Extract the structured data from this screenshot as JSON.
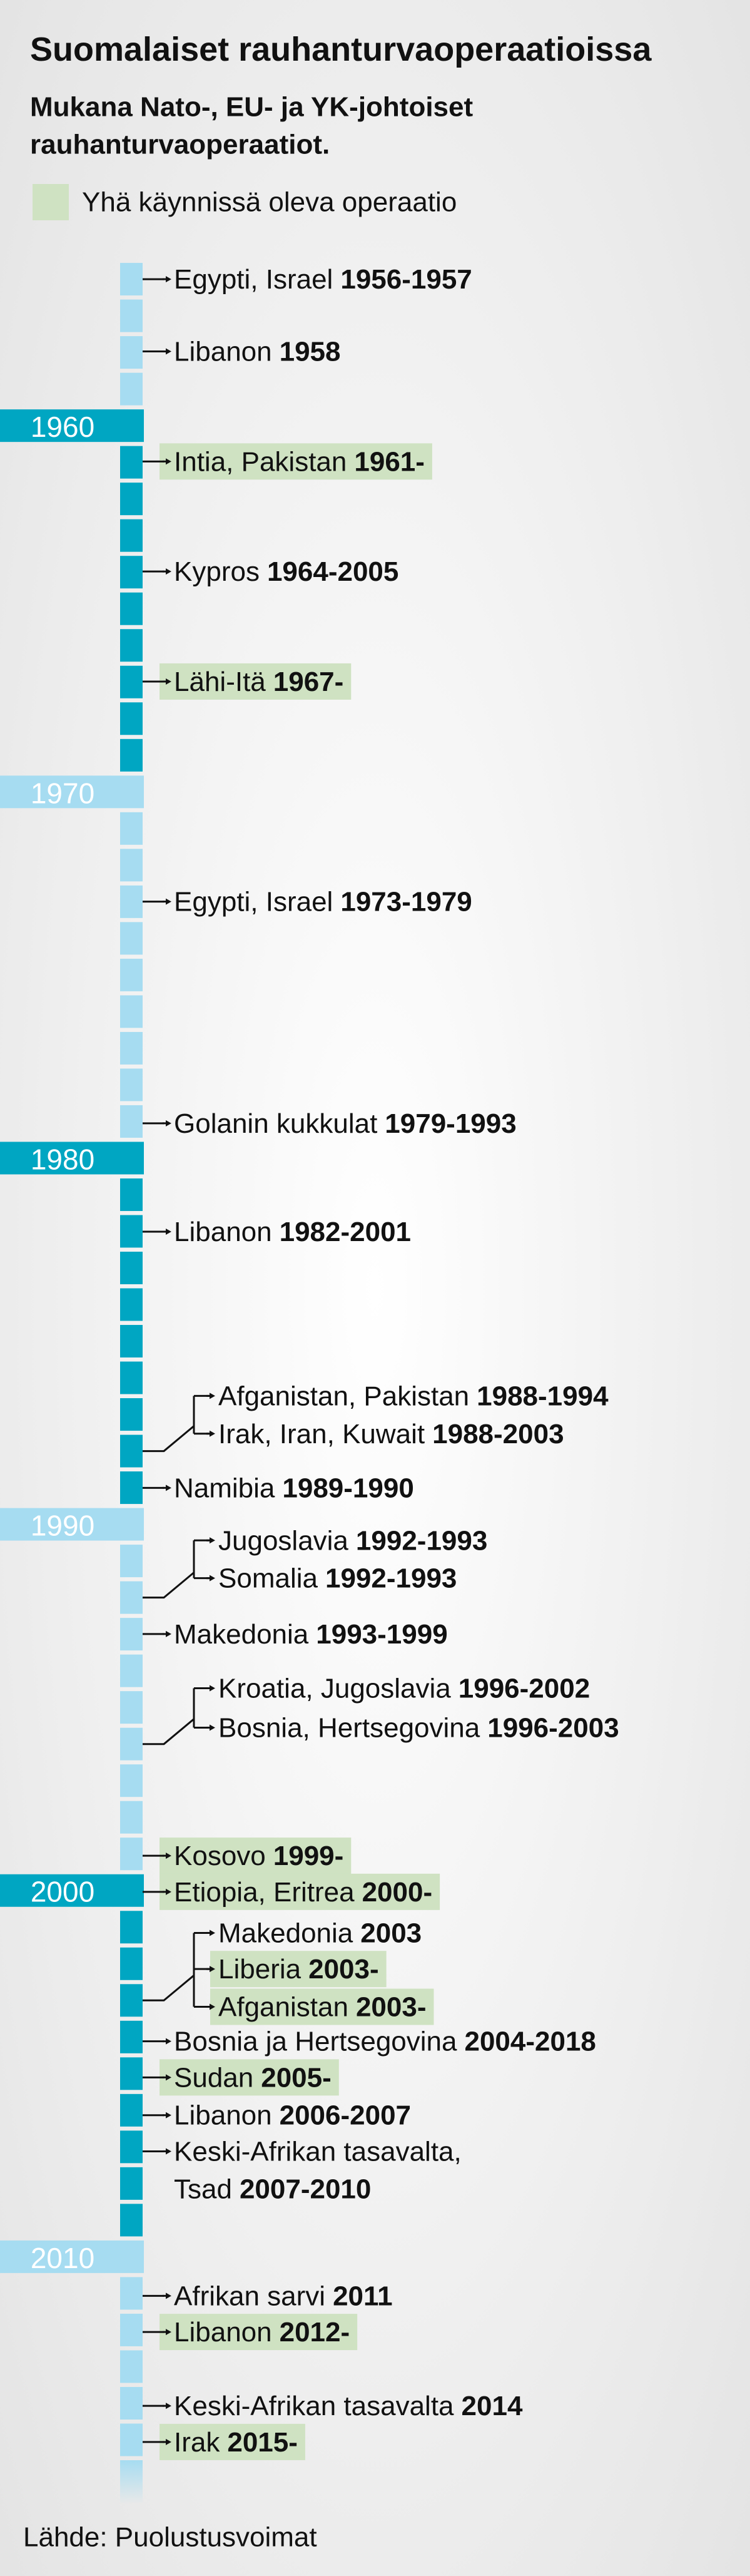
{
  "title": "Suomalaiset rauhanturvaoperaatioissa",
  "subtitle": [
    "Mukana Nato-, EU- ja YK-johtoiset",
    "rauhanturvaoperaatiot."
  ],
  "legend": {
    "label": "Yhä käynnissä oleva operaatio",
    "color": "#cfe2c2"
  },
  "decades": [
    "1960",
    "1970",
    "1980",
    "1990",
    "2000",
    "2010"
  ],
  "operations": [
    {
      "name": "Egypti, Israel",
      "years": "1956-1957",
      "ongoing": false
    },
    {
      "name": "Libanon",
      "years": "1958",
      "ongoing": false
    },
    {
      "name": "Intia, Pakistan",
      "years": "1961-",
      "ongoing": true
    },
    {
      "name": "Kypros",
      "years": "1964-2005",
      "ongoing": false
    },
    {
      "name": "Lähi-Itä",
      "years": "1967-",
      "ongoing": true
    },
    {
      "name": "Egypti, Israel",
      "years": "1973-1979",
      "ongoing": false
    },
    {
      "name": "Golanin kukkulat",
      "years": "1979-1993",
      "ongoing": false
    },
    {
      "name": "Libanon",
      "years": "1982-2001",
      "ongoing": false
    },
    {
      "name": "Afganistan, Pakistan",
      "years": "1988-1994",
      "ongoing": false
    },
    {
      "name": "Irak, Iran, Kuwait",
      "years": "1988-2003",
      "ongoing": false
    },
    {
      "name": "Namibia",
      "years": "1989-1990",
      "ongoing": false
    },
    {
      "name": "Jugoslavia",
      "years": "1992-1993",
      "ongoing": false
    },
    {
      "name": "Somalia",
      "years": "1992-1993",
      "ongoing": false
    },
    {
      "name": "Makedonia",
      "years": "1993-1999",
      "ongoing": false
    },
    {
      "name": "Kroatia, Jugoslavia",
      "years": "1996-2002",
      "ongoing": false
    },
    {
      "name": "Bosnia, Hertsegovina",
      "years": "1996-2003",
      "ongoing": false
    },
    {
      "name": "Kosovo",
      "years": "1999-",
      "ongoing": true
    },
    {
      "name": "Etiopia, Eritrea",
      "years": "2000-",
      "ongoing": true
    },
    {
      "name": "Makedonia",
      "years": "2003",
      "ongoing": false
    },
    {
      "name": "Liberia",
      "years": "2003-",
      "ongoing": true
    },
    {
      "name": "Afganistan",
      "years": "2003-",
      "ongoing": true
    },
    {
      "name": "Bosnia ja Hertsegovina",
      "years": "2004-2018",
      "ongoing": false
    },
    {
      "name": "Sudan",
      "years": "2005-",
      "ongoing": true
    },
    {
      "name": "Libanon",
      "years": "2006-2007",
      "ongoing": false
    },
    {
      "name": "Keski-Afrikan tasavalta,",
      "name2": "Tsad",
      "years": "2007-2010",
      "ongoing": false
    },
    {
      "name": "Afrikan sarvi",
      "years": "2011",
      "ongoing": false
    },
    {
      "name": "Libanon",
      "years": "2012-",
      "ongoing": true
    },
    {
      "name": "Keski-Afrikan tasavalta",
      "years": "2014",
      "ongoing": false
    },
    {
      "name": "Irak",
      "years": "2015-",
      "ongoing": true
    }
  ],
  "source": "Lähde: Puolustusvoimat"
}
